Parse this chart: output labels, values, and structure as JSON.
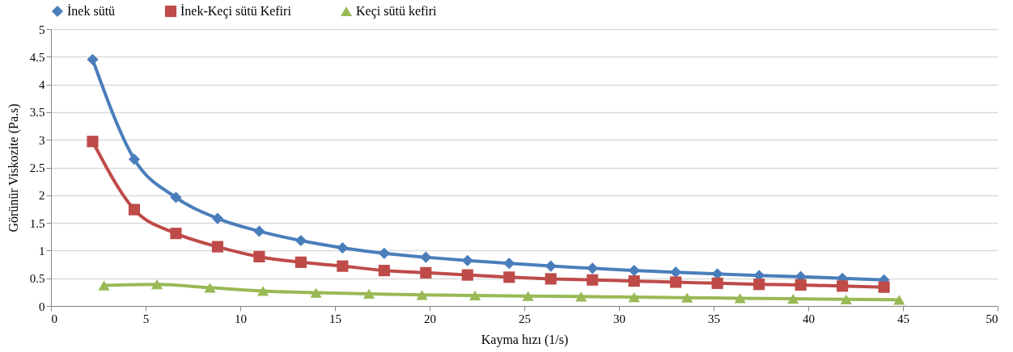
{
  "chart_data": {
    "type": "line",
    "xlabel": "Kayma hızı (1/s)",
    "ylabel": "Görünür Viskozite (Pa.s)",
    "xlim": [
      0,
      50
    ],
    "xticks": [
      0,
      5,
      10,
      15,
      20,
      25,
      30,
      35,
      40,
      45,
      50
    ],
    "ylim": [
      0,
      5
    ],
    "yticks": [
      0,
      0.5,
      1,
      1.5,
      2,
      2.5,
      3,
      3.5,
      4,
      4.5,
      5
    ],
    "grid": "y",
    "legend": "top",
    "line_style": "solid",
    "series": [
      {
        "name": "İnek sütü",
        "color": "#4a7ebb",
        "marker": "diamond",
        "x": [
          2.2,
          4.4,
          6.6,
          8.8,
          11,
          13.2,
          15.4,
          17.6,
          19.8,
          22,
          24.2,
          26.4,
          28.6,
          30.8,
          33,
          35.2,
          37.4,
          39.6,
          41.8,
          44
        ],
        "values": [
          4.45,
          2.65,
          1.96,
          1.58,
          1.35,
          1.18,
          1.05,
          0.95,
          0.88,
          0.82,
          0.77,
          0.72,
          0.68,
          0.64,
          0.61,
          0.58,
          0.55,
          0.53,
          0.5,
          0.47
        ]
      },
      {
        "name": "İnek-Keçi sütü Kefiri",
        "color": "#be4b48",
        "marker": "square",
        "x": [
          2.2,
          4.4,
          6.6,
          8.8,
          11,
          13.2,
          15.4,
          17.6,
          19.8,
          22,
          24.2,
          26.4,
          28.6,
          30.8,
          33,
          35.2,
          37.4,
          39.6,
          41.8,
          44
        ],
        "values": [
          2.97,
          1.74,
          1.31,
          1.07,
          0.89,
          0.79,
          0.72,
          0.64,
          0.6,
          0.56,
          0.52,
          0.49,
          0.47,
          0.45,
          0.43,
          0.41,
          0.39,
          0.38,
          0.36,
          0.34
        ]
      },
      {
        "name": "Keçi sütü kefiri",
        "color": "#98b954",
        "marker": "triangle",
        "x": [
          2.8,
          5.6,
          8.4,
          11.2,
          14,
          16.8,
          19.6,
          22.4,
          25.2,
          28,
          30.8,
          33.6,
          36.4,
          39.2,
          42,
          44.8
        ],
        "values": [
          0.37,
          0.39,
          0.33,
          0.27,
          0.24,
          0.22,
          0.2,
          0.19,
          0.18,
          0.17,
          0.16,
          0.15,
          0.14,
          0.13,
          0.12,
          0.11
        ]
      }
    ]
  }
}
